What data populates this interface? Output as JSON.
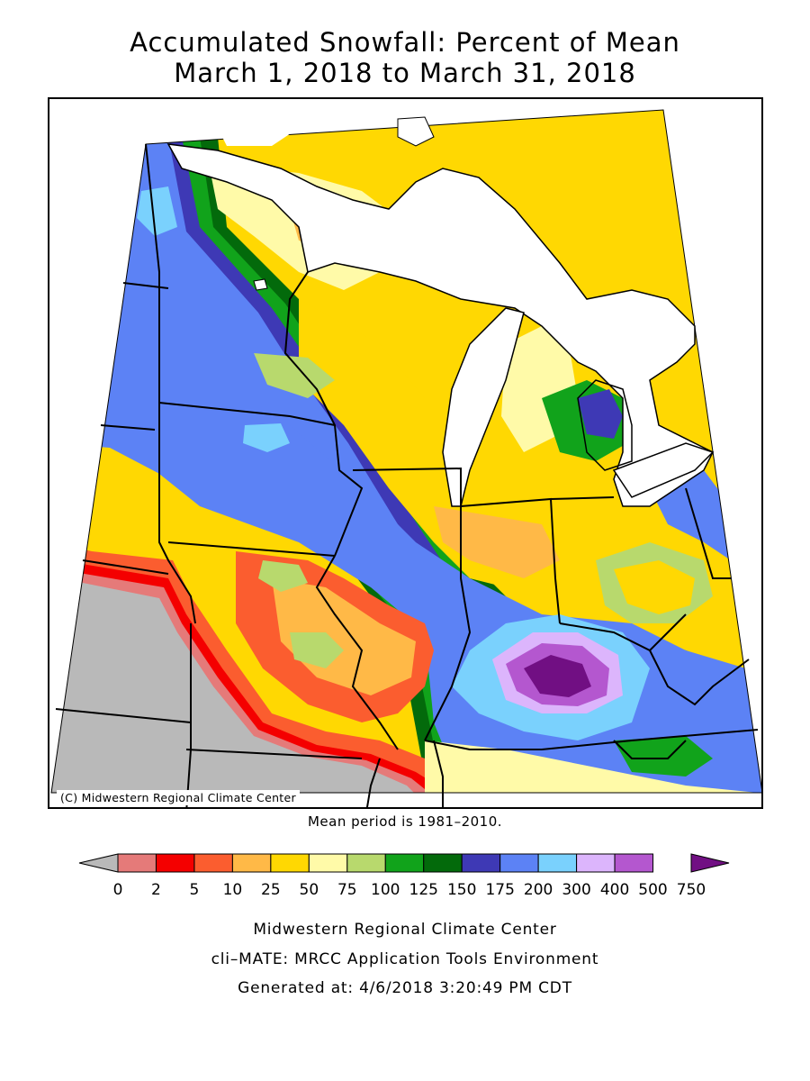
{
  "title": {
    "line1": "Accumulated Snowfall: Percent of Mean",
    "line2": "March 1, 2018 to March 31, 2018"
  },
  "map": {
    "copyright": "(C) Midwestern Regional Climate Center",
    "mean_period": "Mean period is 1981–2010."
  },
  "legend": {
    "breaks": [
      "0",
      "2",
      "5",
      "10",
      "25",
      "50",
      "75",
      "100",
      "125",
      "150",
      "175",
      "200",
      "300",
      "400",
      "500",
      "750"
    ],
    "colors": [
      "#b9b9b9",
      "#e57a79",
      "#f40000",
      "#fb5d2f",
      "#ffb947",
      "#ffd802",
      "#fffaa8",
      "#b8d96d",
      "#11a31b",
      "#036a0b",
      "#3e39b5",
      "#5c82f5",
      "#7ad1fd",
      "#dcb5fc",
      "#b457cf",
      "#710f83"
    ]
  },
  "footer": {
    "line1": "Midwestern Regional Climate Center",
    "line2": "cli–MATE: MRCC Application Tools Environment",
    "line3": "Generated at: 4/6/2018 3:20:49 PM CDT"
  }
}
